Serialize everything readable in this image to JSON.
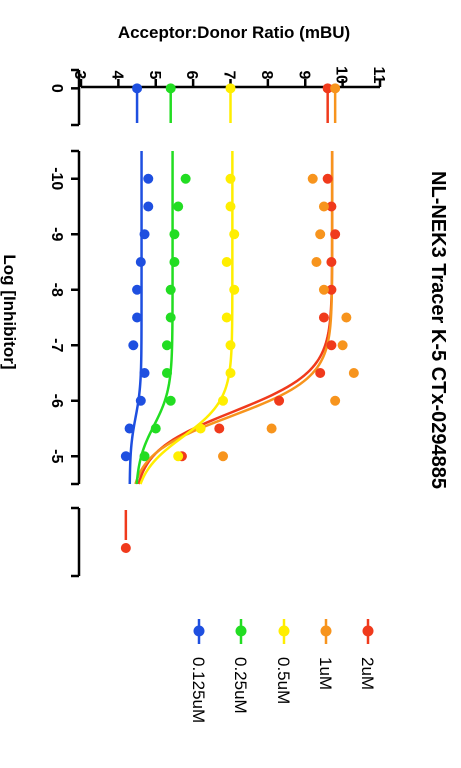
{
  "chart_data": {
    "type": "scatter",
    "title": "NL-NEK3 Tracer K-5 CTx-0294885",
    "xlabel": "Log [Inhibitor]",
    "ylabel": "Acceptor:Donor Ratio (mBU)",
    "ylim": [
      3,
      11
    ],
    "yticks": [
      "3",
      "4",
      "5",
      "6",
      "7",
      "8",
      "9",
      "10",
      "11"
    ],
    "x_segments": [
      {
        "id": "zero",
        "range": [
          -0.3,
          0.6
        ],
        "ticks": [
          "0"
        ]
      },
      {
        "id": "log",
        "range": [
          -10.5,
          -4.5
        ],
        "ticks": [
          "-10",
          "-9",
          "-8",
          "-7",
          "-6",
          "-5"
        ]
      },
      {
        "id": "high",
        "range": [
          -0.5,
          0.5
        ],
        "ticks": []
      }
    ],
    "legend_position": "bottom",
    "series": [
      {
        "name": "2uM",
        "color": "#f03a1c",
        "zero_points": [
          9.6
        ],
        "high_points": [
          4.2
        ],
        "x": [
          -10,
          -9.5,
          -9,
          -8.5,
          -8,
          -7.5,
          -7,
          -6.5,
          -6,
          -5.5,
          -5
        ],
        "y": [
          9.6,
          9.7,
          9.8,
          9.7,
          9.7,
          9.5,
          9.7,
          9.4,
          8.3,
          6.7,
          5.7
        ],
        "fit": {
          "bottom": 4.4,
          "top": 9.72,
          "logEC50": -5.8,
          "hill": 1.2
        }
      },
      {
        "name": "1uM",
        "color": "#f7941d",
        "zero_points": [
          9.8
        ],
        "high_points": [],
        "x": [
          -10,
          -9.5,
          -9,
          -8.5,
          -8,
          -7.5,
          -7,
          -6.5,
          -6,
          -5.5,
          -5
        ],
        "y": [
          9.2,
          9.5,
          9.4,
          9.3,
          9.5,
          10.1,
          10.0,
          10.3,
          9.8,
          8.1,
          6.8
        ],
        "fit": {
          "bottom": 4.3,
          "top": 9.72,
          "logEC50": -5.72,
          "hill": 1.25
        }
      },
      {
        "name": "0.5uM",
        "color": "#ffee00",
        "zero_points": [
          7.0
        ],
        "high_points": [],
        "x": [
          -10,
          -9.5,
          -9,
          -8.5,
          -8,
          -7.5,
          -7,
          -6.5,
          -6,
          -5.5,
          -5
        ],
        "y": [
          7.0,
          7.0,
          7.1,
          6.9,
          7.1,
          6.9,
          7.0,
          7.0,
          6.8,
          6.2,
          5.6
        ],
        "fit": {
          "bottom": 4.4,
          "top": 7.05,
          "logEC50": -5.35,
          "hill": 1.3
        }
      },
      {
        "name": "0.25uM",
        "color": "#22dd22",
        "zero_points": [
          5.4
        ],
        "high_points": [],
        "x": [
          -10,
          -9.5,
          -9,
          -8.5,
          -8,
          -7.5,
          -7,
          -6.5,
          -6,
          -5.5,
          -5
        ],
        "y": [
          5.8,
          5.6,
          5.5,
          5.5,
          5.4,
          5.4,
          5.3,
          5.3,
          5.4,
          5.0,
          4.7
        ],
        "fit": {
          "bottom": 4.45,
          "top": 5.45,
          "logEC50": -5.55,
          "hill": 1.3
        }
      },
      {
        "name": "0.125uM",
        "color": "#1e4fe0",
        "zero_points": [
          4.5
        ],
        "high_points": [],
        "x": [
          -10,
          -9.5,
          -9,
          -8.5,
          -8,
          -7.5,
          -7,
          -6.5,
          -6,
          -5.5,
          -5
        ],
        "y": [
          4.8,
          4.8,
          4.7,
          4.6,
          4.5,
          4.5,
          4.4,
          4.7,
          4.6,
          4.3,
          4.2
        ],
        "fit": {
          "bottom": 4.3,
          "top": 4.62,
          "logEC50": -5.7,
          "hill": 1.5
        }
      }
    ]
  }
}
